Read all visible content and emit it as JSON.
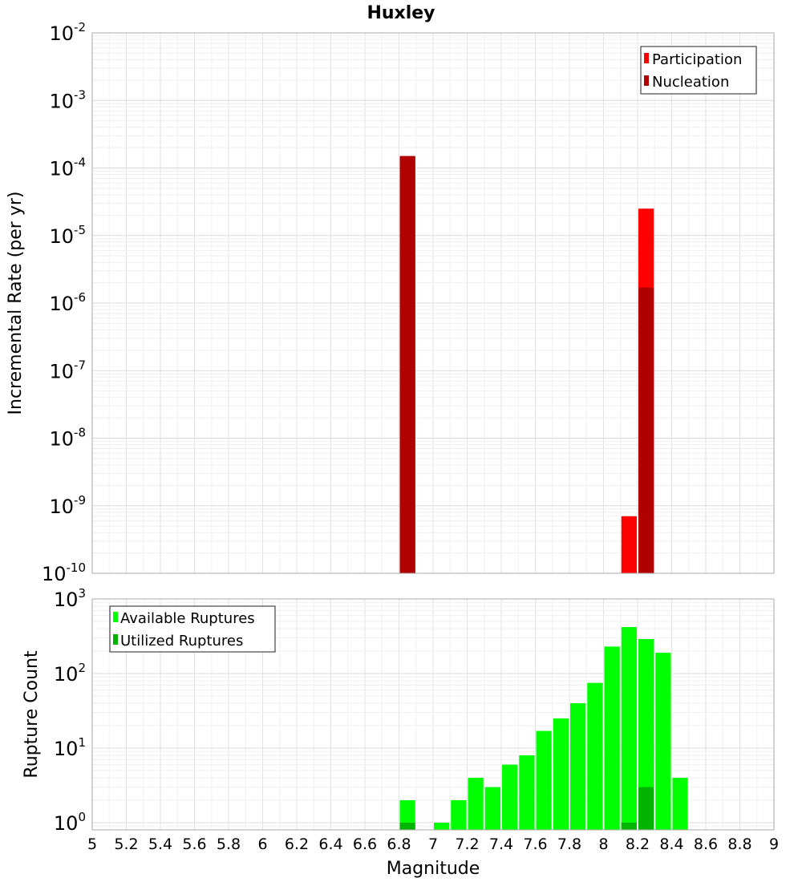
{
  "chart_data": [
    {
      "type": "bar",
      "title": "Huxley",
      "xlabel": "Magnitude",
      "ylabel": "Incremental Rate (per yr)",
      "y_scale": "log",
      "ylim": [
        1e-10,
        0.01
      ],
      "xlim": [
        5,
        9
      ],
      "bin_width": 0.1,
      "grid": true,
      "legend_position": "top-right",
      "y_tick_exponents": [
        "-2",
        "-3",
        "-4",
        "-5",
        "-6",
        "-7",
        "-8",
        "-9",
        "-10"
      ],
      "series": [
        {
          "name": "Participation",
          "color": "#ff0000",
          "x": [
            6.85,
            8.15,
            8.25
          ],
          "values": [
            0.00015,
            7e-10,
            2.5e-05
          ]
        },
        {
          "name": "Nucleation",
          "color": "#b00000",
          "x": [
            6.85,
            8.25
          ],
          "values": [
            0.00015,
            1.7e-06
          ]
        }
      ]
    },
    {
      "type": "bar",
      "xlabel": "Magnitude",
      "ylabel": "Rupture Count",
      "y_scale": "log",
      "ylim": [
        0.8,
        1000
      ],
      "xlim": [
        5,
        9
      ],
      "bin_width": 0.1,
      "grid": true,
      "legend_position": "top-left",
      "y_tick_exponents": [
        "3",
        "2",
        "1",
        "0"
      ],
      "x_ticks": [
        "5",
        "5.2",
        "5.4",
        "5.6",
        "5.8",
        "6",
        "6.2",
        "6.4",
        "6.6",
        "6.8",
        "7",
        "7.2",
        "7.4",
        "7.6",
        "7.8",
        "8",
        "8.2",
        "8.4",
        "8.6",
        "8.8",
        "9"
      ],
      "series": [
        {
          "name": "Available Ruptures",
          "color": "#00ff00",
          "x": [
            6.85,
            7.05,
            7.15,
            7.25,
            7.35,
            7.45,
            7.55,
            7.65,
            7.75,
            7.85,
            7.95,
            8.05,
            8.15,
            8.25,
            8.35,
            8.45
          ],
          "values": [
            2,
            1,
            2,
            4,
            3,
            6,
            8,
            17,
            25,
            40,
            75,
            230,
            420,
            290,
            190,
            4
          ]
        },
        {
          "name": "Utilized Ruptures",
          "color": "#00b400",
          "x": [
            6.85,
            8.15,
            8.25
          ],
          "values": [
            1,
            1,
            3
          ]
        }
      ]
    }
  ]
}
